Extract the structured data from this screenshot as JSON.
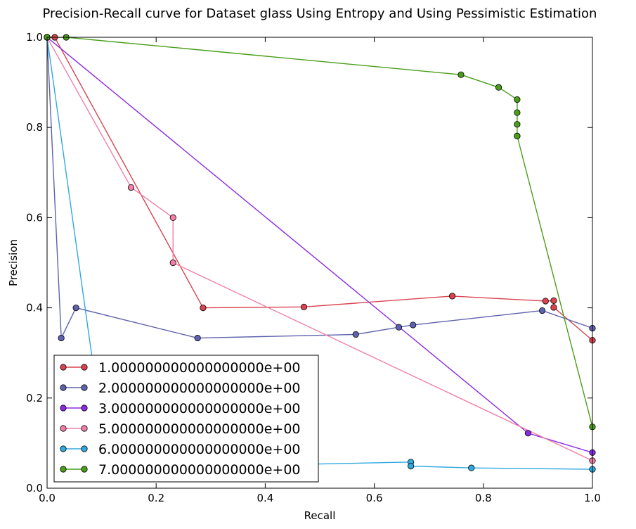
{
  "chart_data": {
    "type": "line",
    "title": "Precision-Recall curve for Dataset glass Using Entropy and Using Pessimistic Estimation",
    "xlabel": "Recall",
    "ylabel": "Precision",
    "xlim": [
      0.0,
      1.0
    ],
    "ylim": [
      0.0,
      1.0
    ],
    "xticks": [
      "0.0",
      "0.2",
      "0.4",
      "0.6",
      "0.8",
      "1.0"
    ],
    "yticks": [
      "0.0",
      "0.2",
      "0.4",
      "0.6",
      "0.8",
      "1.0"
    ],
    "legend_position": "lower-left",
    "series": [
      {
        "name": "1.000000000000000000e+00",
        "color": "#d9434f",
        "points": [
          [
            0.0,
            1.0
          ],
          [
            0.014,
            1.0
          ],
          [
            0.286,
            0.4
          ],
          [
            0.471,
            0.402
          ],
          [
            0.743,
            0.426
          ],
          [
            0.743,
            0.426
          ],
          [
            0.914,
            0.415
          ],
          [
            0.929,
            0.416
          ],
          [
            0.929,
            0.401
          ],
          [
            1.0,
            0.328
          ]
        ]
      },
      {
        "name": "2.000000000000000000e+00",
        "color": "#5f62ad",
        "points": [
          [
            0.0,
            1.0
          ],
          [
            0.026,
            0.333
          ],
          [
            0.053,
            0.4
          ],
          [
            0.276,
            0.333
          ],
          [
            0.566,
            0.341
          ],
          [
            0.645,
            0.357
          ],
          [
            0.671,
            0.362
          ],
          [
            0.908,
            0.394
          ],
          [
            1.0,
            0.355
          ]
        ]
      },
      {
        "name": "3.000000000000000000e+00",
        "color": "#8a2be2",
        "points": [
          [
            0.0,
            1.0
          ],
          [
            0.882,
            0.122
          ],
          [
            1.0,
            0.079
          ]
        ]
      },
      {
        "name": "5.000000000000000000e+00",
        "color": "#f07fa8",
        "points": [
          [
            0.0,
            1.0
          ],
          [
            0.154,
            0.667
          ],
          [
            0.231,
            0.6
          ],
          [
            0.231,
            0.5
          ],
          [
            1.0,
            0.061
          ]
        ]
      },
      {
        "name": "6.000000000000000000e+00",
        "color": "#30a8e0",
        "points": [
          [
            0.0,
            1.0
          ],
          [
            0.111,
            0.044
          ],
          [
            0.667,
            0.058
          ],
          [
            0.667,
            0.049
          ],
          [
            0.778,
            0.045
          ],
          [
            1.0,
            0.042
          ]
        ]
      },
      {
        "name": "7.000000000000000000e+00",
        "color": "#4a9e1a",
        "points": [
          [
            0.0,
            1.0
          ],
          [
            0.035,
            1.0
          ],
          [
            0.759,
            0.917
          ],
          [
            0.828,
            0.889
          ],
          [
            0.862,
            0.862
          ],
          [
            0.862,
            0.833
          ],
          [
            0.862,
            0.807
          ],
          [
            0.862,
            0.781
          ],
          [
            0.862,
            0.781
          ],
          [
            1.0,
            0.136
          ]
        ]
      }
    ]
  }
}
